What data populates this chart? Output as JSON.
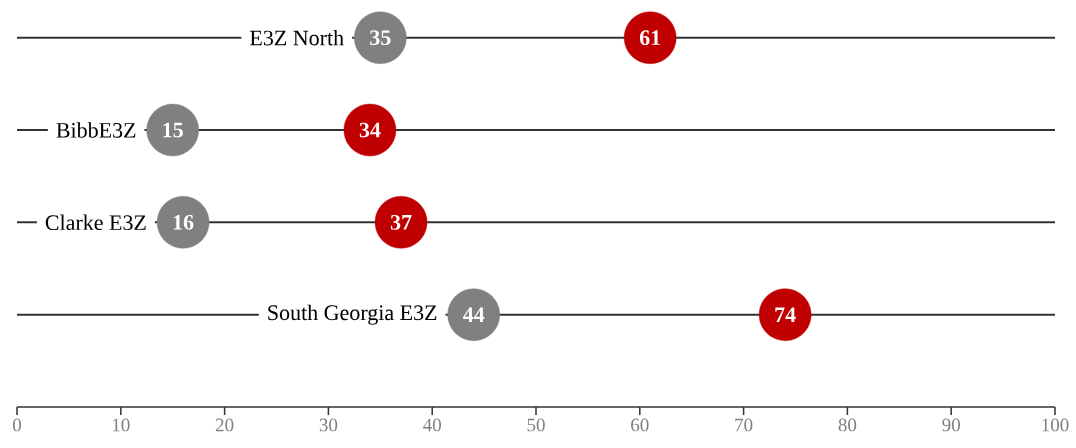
{
  "chart_data": {
    "type": "scatter",
    "orientation": "horizontal",
    "categories": [
      "E3Z North",
      "BibbE3Z",
      "Clarke E3Z",
      "South Georgia E3Z"
    ],
    "series": [
      {
        "color": "#808080",
        "values": [
          35,
          15,
          16,
          44
        ]
      },
      {
        "color": "#c00000",
        "values": [
          61,
          34,
          37,
          74
        ]
      }
    ],
    "xlim": [
      0,
      100
    ],
    "xticks": [
      0,
      10,
      20,
      30,
      40,
      50,
      60,
      70,
      80,
      90,
      100
    ],
    "grid": "y",
    "data_labels": true
  }
}
